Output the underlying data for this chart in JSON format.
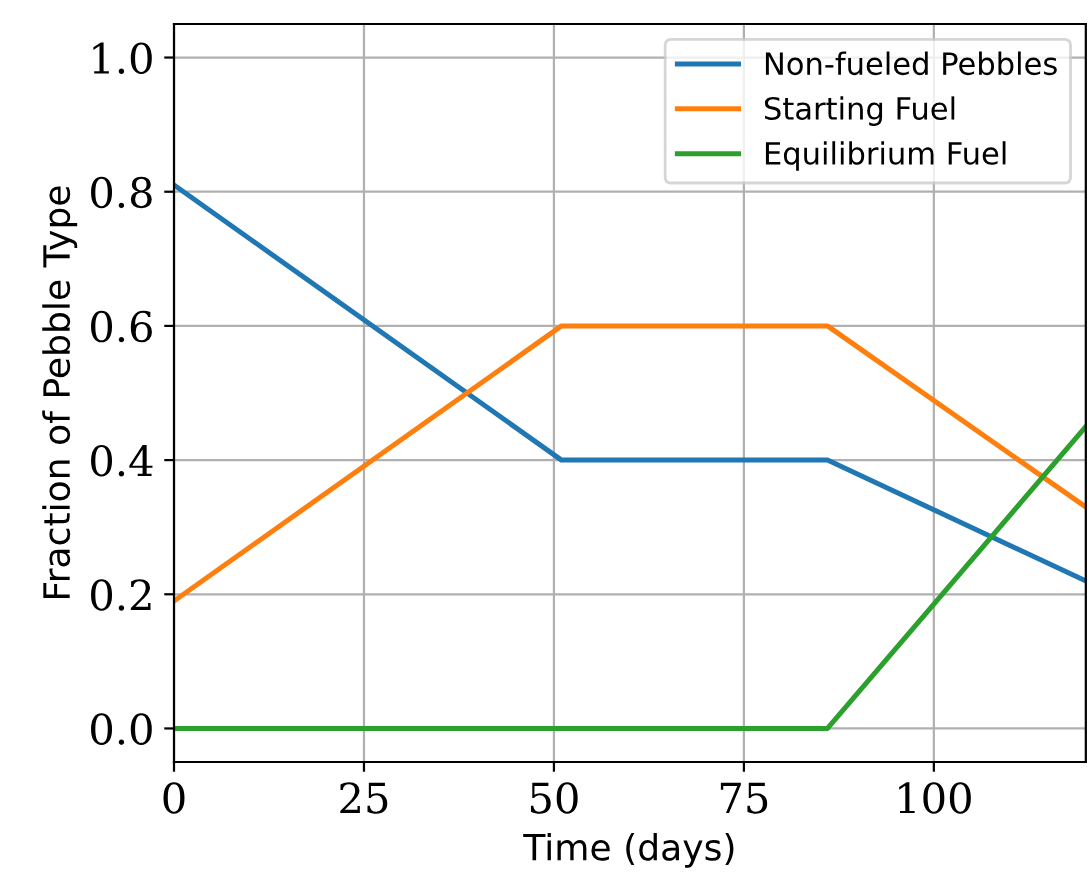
{
  "chart_data": {
    "type": "line",
    "xlabel": "Time (days)",
    "ylabel": "Fraction of Pebble Type",
    "series": [
      {
        "name": "Non-fueled Pebbles",
        "color": "#1f77b4",
        "x": [
          0,
          51,
          86,
          120
        ],
        "values": [
          0.81,
          0.4,
          0.4,
          0.22
        ]
      },
      {
        "name": "Starting Fuel",
        "color": "#ff7f0e",
        "x": [
          0,
          51,
          86,
          120
        ],
        "values": [
          0.19,
          0.6,
          0.6,
          0.33
        ]
      },
      {
        "name": "Equilibrium Fuel",
        "color": "#2ca02c",
        "x": [
          0,
          86,
          120
        ],
        "values": [
          0,
          0,
          0.45
        ]
      }
    ],
    "xlim": [
      0,
      120
    ],
    "ylim": [
      -0.05,
      1.05
    ],
    "xticks": [
      0,
      25,
      50,
      75,
      100
    ],
    "yticks": [
      {
        "value": 0,
        "label": "0.0"
      },
      {
        "value": 0.2,
        "label": "0.2"
      },
      {
        "value": 0.4,
        "label": "0.4"
      },
      {
        "value": 0.6,
        "label": "0.6"
      },
      {
        "value": 0.8,
        "label": "0.8"
      },
      {
        "value": 1,
        "label": "1.0"
      }
    ],
    "grid": true,
    "legend": "top right"
  }
}
